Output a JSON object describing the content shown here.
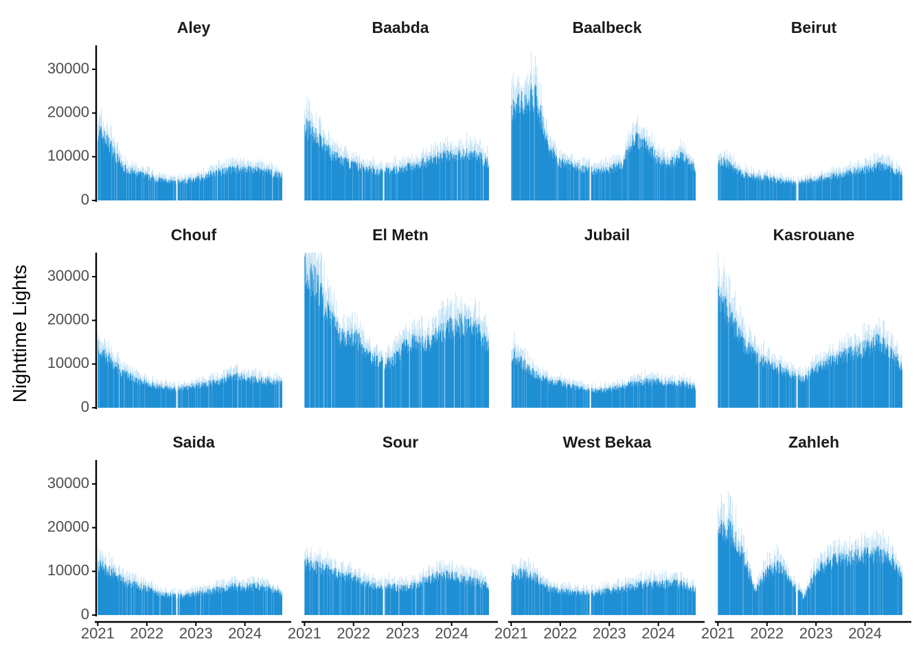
{
  "chart_data": {
    "type": "bar",
    "ylabel": "Nighttime Lights",
    "xlabel": "",
    "title": "",
    "ylim": [
      0,
      35500
    ],
    "yticks": [
      0,
      10000,
      20000,
      30000
    ],
    "ytick_labels": [
      "0",
      "10000",
      "20000",
      "30000"
    ],
    "xlim": [
      "2020-12-20",
      "2024-12-10"
    ],
    "xticks": [
      "2021-01-01",
      "2022-01-01",
      "2023-01-01",
      "2024-01-01"
    ],
    "xtick_labels": [
      "2021",
      "2022",
      "2023",
      "2024"
    ],
    "grid": false,
    "legend": "none",
    "bar_color": "#1f8fd4",
    "band_color": "#bfe0f5",
    "date_range": [
      "2021-01-01",
      "2024-09-30"
    ],
    "data_gaps": [
      [
        "2022-08-05",
        "2022-08-15"
      ]
    ],
    "series_note_points": [
      "2021-01",
      "2021-04",
      "2021-07",
      "2021-10",
      "2022-01",
      "2022-04",
      "2022-07",
      "2022-10",
      "2023-01",
      "2023-04",
      "2023-07",
      "2023-10",
      "2024-01",
      "2024-04",
      "2024-07",
      "2024-10"
    ],
    "facets": [
      {
        "name": "Aley",
        "series": [
          {
            "date": "2021-01-01",
            "value": 16000
          },
          {
            "date": "2021-04-01",
            "value": 12500
          },
          {
            "date": "2021-07-01",
            "value": 7500
          },
          {
            "date": "2021-10-01",
            "value": 6200
          },
          {
            "date": "2022-01-01",
            "value": 5500
          },
          {
            "date": "2022-04-01",
            "value": 4700
          },
          {
            "date": "2022-07-01",
            "value": 4200
          },
          {
            "date": "2022-10-01",
            "value": 4300
          },
          {
            "date": "2023-01-01",
            "value": 4800
          },
          {
            "date": "2023-04-01",
            "value": 5800
          },
          {
            "date": "2023-07-01",
            "value": 6500
          },
          {
            "date": "2023-10-01",
            "value": 7000
          },
          {
            "date": "2024-01-01",
            "value": 7200
          },
          {
            "date": "2024-04-01",
            "value": 6800
          },
          {
            "date": "2024-07-01",
            "value": 6300
          },
          {
            "date": "2024-09-30",
            "value": 5500
          }
        ]
      },
      {
        "name": "Baabda",
        "series": [
          {
            "date": "2021-01-01",
            "value": 17000
          },
          {
            "date": "2021-04-01",
            "value": 14500
          },
          {
            "date": "2021-07-01",
            "value": 11000
          },
          {
            "date": "2021-10-01",
            "value": 9000
          },
          {
            "date": "2022-01-01",
            "value": 8000
          },
          {
            "date": "2022-04-01",
            "value": 7200
          },
          {
            "date": "2022-07-01",
            "value": 6500
          },
          {
            "date": "2022-10-01",
            "value": 6800
          },
          {
            "date": "2023-01-01",
            "value": 7200
          },
          {
            "date": "2023-04-01",
            "value": 8000
          },
          {
            "date": "2023-07-01",
            "value": 8800
          },
          {
            "date": "2023-10-01",
            "value": 9800
          },
          {
            "date": "2024-01-01",
            "value": 10300
          },
          {
            "date": "2024-04-01",
            "value": 10700
          },
          {
            "date": "2024-07-01",
            "value": 10200
          },
          {
            "date": "2024-09-30",
            "value": 8500
          }
        ]
      },
      {
        "name": "Baalbeck",
        "series": [
          {
            "date": "2021-01-01",
            "value": 20500
          },
          {
            "date": "2021-04-01",
            "value": 22000
          },
          {
            "date": "2021-07-01",
            "value": 24000
          },
          {
            "date": "2021-10-01",
            "value": 12000
          },
          {
            "date": "2022-01-01",
            "value": 8500
          },
          {
            "date": "2022-04-01",
            "value": 8000
          },
          {
            "date": "2022-07-01",
            "value": 7000
          },
          {
            "date": "2022-10-01",
            "value": 6500
          },
          {
            "date": "2023-01-01",
            "value": 7000
          },
          {
            "date": "2023-04-01",
            "value": 8000
          },
          {
            "date": "2023-07-01",
            "value": 14000
          },
          {
            "date": "2023-10-01",
            "value": 13000
          },
          {
            "date": "2024-01-01",
            "value": 9000
          },
          {
            "date": "2024-04-01",
            "value": 8500
          },
          {
            "date": "2024-07-01",
            "value": 10000
          },
          {
            "date": "2024-09-30",
            "value": 7000
          }
        ]
      },
      {
        "name": "Beirut",
        "series": [
          {
            "date": "2021-01-01",
            "value": 9500
          },
          {
            "date": "2021-04-01",
            "value": 8000
          },
          {
            "date": "2021-07-01",
            "value": 5800
          },
          {
            "date": "2021-10-01",
            "value": 5200
          },
          {
            "date": "2022-01-01",
            "value": 5000
          },
          {
            "date": "2022-04-01",
            "value": 4500
          },
          {
            "date": "2022-07-01",
            "value": 4000
          },
          {
            "date": "2022-10-01",
            "value": 4200
          },
          {
            "date": "2023-01-01",
            "value": 4800
          },
          {
            "date": "2023-04-01",
            "value": 5300
          },
          {
            "date": "2023-07-01",
            "value": 5800
          },
          {
            "date": "2023-10-01",
            "value": 6500
          },
          {
            "date": "2024-01-01",
            "value": 7000
          },
          {
            "date": "2024-04-01",
            "value": 7800
          },
          {
            "date": "2024-07-01",
            "value": 7300
          },
          {
            "date": "2024-09-30",
            "value": 5500
          }
        ]
      },
      {
        "name": "Chouf",
        "series": [
          {
            "date": "2021-01-01",
            "value": 13500
          },
          {
            "date": "2021-04-01",
            "value": 11000
          },
          {
            "date": "2021-07-01",
            "value": 8000
          },
          {
            "date": "2021-10-01",
            "value": 6500
          },
          {
            "date": "2022-01-01",
            "value": 5500
          },
          {
            "date": "2022-04-01",
            "value": 4800
          },
          {
            "date": "2022-07-01",
            "value": 4300
          },
          {
            "date": "2022-10-01",
            "value": 4500
          },
          {
            "date": "2023-01-01",
            "value": 5000
          },
          {
            "date": "2023-04-01",
            "value": 5500
          },
          {
            "date": "2023-07-01",
            "value": 6000
          },
          {
            "date": "2023-10-01",
            "value": 7500
          },
          {
            "date": "2024-01-01",
            "value": 6500
          },
          {
            "date": "2024-04-01",
            "value": 6300
          },
          {
            "date": "2024-07-01",
            "value": 6000
          },
          {
            "date": "2024-09-30",
            "value": 5500
          }
        ]
      },
      {
        "name": "El Metn",
        "series": [
          {
            "date": "2021-01-01",
            "value": 31000
          },
          {
            "date": "2021-04-01",
            "value": 28000
          },
          {
            "date": "2021-07-01",
            "value": 21000
          },
          {
            "date": "2021-10-01",
            "value": 16000
          },
          {
            "date": "2022-01-01",
            "value": 16500
          },
          {
            "date": "2022-04-01",
            "value": 12500
          },
          {
            "date": "2022-07-01",
            "value": 10500
          },
          {
            "date": "2022-10-01",
            "value": 10000
          },
          {
            "date": "2023-01-01",
            "value": 13500
          },
          {
            "date": "2023-04-01",
            "value": 15000
          },
          {
            "date": "2023-07-01",
            "value": 14500
          },
          {
            "date": "2023-10-01",
            "value": 17000
          },
          {
            "date": "2024-01-01",
            "value": 18500
          },
          {
            "date": "2024-04-01",
            "value": 19000
          },
          {
            "date": "2024-07-01",
            "value": 18000
          },
          {
            "date": "2024-09-30",
            "value": 14000
          }
        ]
      },
      {
        "name": "Jubail",
        "series": [
          {
            "date": "2021-01-01",
            "value": 12500
          },
          {
            "date": "2021-04-01",
            "value": 10000
          },
          {
            "date": "2021-07-01",
            "value": 7500
          },
          {
            "date": "2021-10-01",
            "value": 6000
          },
          {
            "date": "2022-01-01",
            "value": 5500
          },
          {
            "date": "2022-04-01",
            "value": 4800
          },
          {
            "date": "2022-07-01",
            "value": 4200
          },
          {
            "date": "2022-10-01",
            "value": 3800
          },
          {
            "date": "2023-01-01",
            "value": 4200
          },
          {
            "date": "2023-04-01",
            "value": 4800
          },
          {
            "date": "2023-07-01",
            "value": 5500
          },
          {
            "date": "2023-10-01",
            "value": 6000
          },
          {
            "date": "2024-01-01",
            "value": 5800
          },
          {
            "date": "2024-04-01",
            "value": 5500
          },
          {
            "date": "2024-07-01",
            "value": 5500
          },
          {
            "date": "2024-09-30",
            "value": 4500
          }
        ]
      },
      {
        "name": "Kasrouane",
        "series": [
          {
            "date": "2021-01-01",
            "value": 25000
          },
          {
            "date": "2021-04-01",
            "value": 21000
          },
          {
            "date": "2021-07-01",
            "value": 15000
          },
          {
            "date": "2021-10-01",
            "value": 11500
          },
          {
            "date": "2022-01-01",
            "value": 10000
          },
          {
            "date": "2022-04-01",
            "value": 9000
          },
          {
            "date": "2022-07-01",
            "value": 7500
          },
          {
            "date": "2022-10-01",
            "value": 6500
          },
          {
            "date": "2023-01-01",
            "value": 9000
          },
          {
            "date": "2023-04-01",
            "value": 10500
          },
          {
            "date": "2023-07-01",
            "value": 11500
          },
          {
            "date": "2023-10-01",
            "value": 12500
          },
          {
            "date": "2024-01-01",
            "value": 13500
          },
          {
            "date": "2024-04-01",
            "value": 15000
          },
          {
            "date": "2024-07-01",
            "value": 13000
          },
          {
            "date": "2024-09-30",
            "value": 9500
          }
        ]
      },
      {
        "name": "Saida",
        "series": [
          {
            "date": "2021-01-01",
            "value": 11500
          },
          {
            "date": "2021-04-01",
            "value": 10000
          },
          {
            "date": "2021-07-01",
            "value": 8000
          },
          {
            "date": "2021-10-01",
            "value": 6800
          },
          {
            "date": "2022-01-01",
            "value": 6000
          },
          {
            "date": "2022-04-01",
            "value": 5000
          },
          {
            "date": "2022-07-01",
            "value": 4400
          },
          {
            "date": "2022-10-01",
            "value": 4300
          },
          {
            "date": "2023-01-01",
            "value": 4800
          },
          {
            "date": "2023-04-01",
            "value": 5300
          },
          {
            "date": "2023-07-01",
            "value": 5800
          },
          {
            "date": "2023-10-01",
            "value": 6500
          },
          {
            "date": "2024-01-01",
            "value": 6300
          },
          {
            "date": "2024-04-01",
            "value": 6500
          },
          {
            "date": "2024-07-01",
            "value": 6000
          },
          {
            "date": "2024-09-30",
            "value": 4800
          }
        ]
      },
      {
        "name": "Sour",
        "series": [
          {
            "date": "2021-01-01",
            "value": 11500
          },
          {
            "date": "2021-04-01",
            "value": 11000
          },
          {
            "date": "2021-07-01",
            "value": 10000
          },
          {
            "date": "2021-10-01",
            "value": 9000
          },
          {
            "date": "2022-01-01",
            "value": 8500
          },
          {
            "date": "2022-04-01",
            "value": 7000
          },
          {
            "date": "2022-07-01",
            "value": 6500
          },
          {
            "date": "2022-10-01",
            "value": 6500
          },
          {
            "date": "2023-01-01",
            "value": 6000
          },
          {
            "date": "2023-04-01",
            "value": 6800
          },
          {
            "date": "2023-07-01",
            "value": 8000
          },
          {
            "date": "2023-10-01",
            "value": 9000
          },
          {
            "date": "2024-01-01",
            "value": 9000
          },
          {
            "date": "2024-04-01",
            "value": 8000
          },
          {
            "date": "2024-07-01",
            "value": 7500
          },
          {
            "date": "2024-09-30",
            "value": 6500
          }
        ]
      },
      {
        "name": "West Bekaa",
        "series": [
          {
            "date": "2021-01-01",
            "value": 9000
          },
          {
            "date": "2021-04-01",
            "value": 9500
          },
          {
            "date": "2021-07-01",
            "value": 8500
          },
          {
            "date": "2021-10-01",
            "value": 6000
          },
          {
            "date": "2022-01-01",
            "value": 5500
          },
          {
            "date": "2022-04-01",
            "value": 5000
          },
          {
            "date": "2022-07-01",
            "value": 5000
          },
          {
            "date": "2022-10-01",
            "value": 5000
          },
          {
            "date": "2023-01-01",
            "value": 5500
          },
          {
            "date": "2023-04-01",
            "value": 6000
          },
          {
            "date": "2023-07-01",
            "value": 6500
          },
          {
            "date": "2023-10-01",
            "value": 7000
          },
          {
            "date": "2024-01-01",
            "value": 7000
          },
          {
            "date": "2024-04-01",
            "value": 7200
          },
          {
            "date": "2024-07-01",
            "value": 7000
          },
          {
            "date": "2024-09-30",
            "value": 5500
          }
        ]
      },
      {
        "name": "Zahleh",
        "series": [
          {
            "date": "2021-01-01",
            "value": 20000
          },
          {
            "date": "2021-04-01",
            "value": 19000
          },
          {
            "date": "2021-07-01",
            "value": 14000
          },
          {
            "date": "2021-10-01",
            "value": 5500
          },
          {
            "date": "2022-01-01",
            "value": 10000
          },
          {
            "date": "2022-04-01",
            "value": 11000
          },
          {
            "date": "2022-07-01",
            "value": 7000
          },
          {
            "date": "2022-10-01",
            "value": 4000
          },
          {
            "date": "2023-01-01",
            "value": 10000
          },
          {
            "date": "2023-04-01",
            "value": 12000
          },
          {
            "date": "2023-07-01",
            "value": 12500
          },
          {
            "date": "2023-10-01",
            "value": 13000
          },
          {
            "date": "2024-01-01",
            "value": 13500
          },
          {
            "date": "2024-04-01",
            "value": 14000
          },
          {
            "date": "2024-07-01",
            "value": 13000
          },
          {
            "date": "2024-09-30",
            "value": 9000
          }
        ]
      }
    ]
  }
}
